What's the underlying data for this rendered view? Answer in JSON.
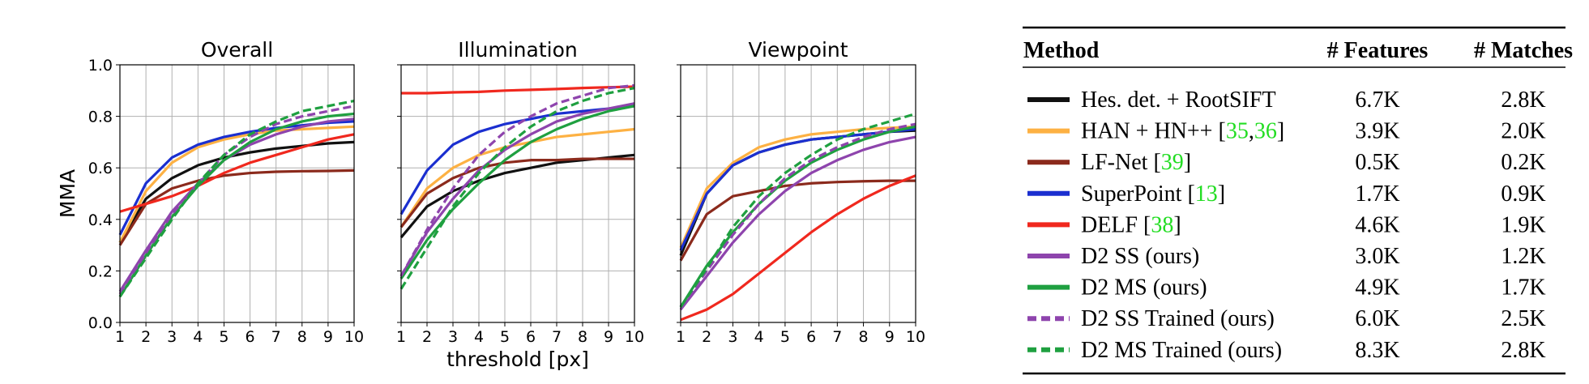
{
  "chart_data": [
    {
      "type": "line",
      "title": "Overall",
      "y_label": "MMA",
      "x": [
        1,
        2,
        3,
        4,
        5,
        6,
        7,
        8,
        9,
        10
      ],
      "xlim": [
        1,
        10
      ],
      "xticks": [
        1,
        2,
        3,
        4,
        5,
        6,
        7,
        8,
        9,
        10
      ],
      "ylim": [
        0,
        1
      ],
      "yticks": [
        {
          "value": 0,
          "label": "0.0"
        },
        {
          "value": 0.2,
          "label": "0.2"
        },
        {
          "value": 0.4,
          "label": "0.4"
        },
        {
          "value": 0.6,
          "label": "0.6"
        },
        {
          "value": 0.8,
          "label": "0.8"
        },
        {
          "value": 1,
          "label": "1.0"
        }
      ],
      "grid": true,
      "series": [
        {
          "name": "Hes. det. + RootSIFT",
          "color": "#111111",
          "dashed": false,
          "values": [
            0.31,
            0.48,
            0.56,
            0.61,
            0.64,
            0.66,
            0.675,
            0.685,
            0.695,
            0.7
          ]
        },
        {
          "name": "HAN + HN++",
          "color": "#fdb143",
          "dashed": false,
          "values": [
            0.31,
            0.51,
            0.62,
            0.68,
            0.71,
            0.73,
            0.745,
            0.75,
            0.755,
            0.76
          ]
        },
        {
          "name": "LF-Net",
          "color": "#8b2a1c",
          "dashed": false,
          "values": [
            0.3,
            0.46,
            0.52,
            0.55,
            0.57,
            0.58,
            0.585,
            0.587,
            0.588,
            0.59
          ]
        },
        {
          "name": "SuperPoint",
          "color": "#1b2fd0",
          "dashed": false,
          "values": [
            0.34,
            0.54,
            0.64,
            0.69,
            0.72,
            0.74,
            0.755,
            0.765,
            0.775,
            0.78
          ]
        },
        {
          "name": "DELF",
          "color": "#f0281e",
          "dashed": false,
          "values": [
            0.43,
            0.46,
            0.49,
            0.53,
            0.58,
            0.62,
            0.65,
            0.68,
            0.71,
            0.73
          ]
        },
        {
          "name": "D2 SS (ours)",
          "color": "#8e44ad",
          "dashed": false,
          "values": [
            0.12,
            0.28,
            0.43,
            0.54,
            0.63,
            0.69,
            0.73,
            0.76,
            0.78,
            0.79
          ]
        },
        {
          "name": "D2 MS (ours)",
          "color": "#1fa040",
          "dashed": false,
          "values": [
            0.1,
            0.26,
            0.41,
            0.53,
            0.63,
            0.7,
            0.75,
            0.78,
            0.8,
            0.81
          ]
        },
        {
          "name": "D2 SS Trained (ours)",
          "color": "#8e44ad",
          "dashed": true,
          "values": [
            0.11,
            0.27,
            0.42,
            0.54,
            0.65,
            0.72,
            0.77,
            0.8,
            0.82,
            0.84
          ]
        },
        {
          "name": "D2 MS Trained (ours)",
          "color": "#1fa040",
          "dashed": true,
          "values": [
            0.1,
            0.25,
            0.4,
            0.54,
            0.65,
            0.73,
            0.78,
            0.82,
            0.84,
            0.86
          ]
        }
      ]
    },
    {
      "type": "line",
      "title": "Illumination",
      "x_label": "threshold [px]",
      "x": [
        1,
        2,
        3,
        4,
        5,
        6,
        7,
        8,
        9,
        10
      ],
      "xlim": [
        1,
        10
      ],
      "xticks": [
        1,
        2,
        3,
        4,
        5,
        6,
        7,
        8,
        9,
        10
      ],
      "ylim": [
        0,
        1
      ],
      "yticks": [
        0,
        0.2,
        0.4,
        0.6,
        0.8,
        1
      ],
      "grid": true,
      "series": [
        {
          "color": "#111111",
          "dashed": false,
          "values": [
            0.33,
            0.45,
            0.51,
            0.55,
            0.58,
            0.6,
            0.62,
            0.63,
            0.64,
            0.65
          ]
        },
        {
          "color": "#fdb143",
          "dashed": false,
          "values": [
            0.37,
            0.52,
            0.6,
            0.65,
            0.68,
            0.7,
            0.72,
            0.73,
            0.74,
            0.75
          ]
        },
        {
          "color": "#8b2a1c",
          "dashed": false,
          "values": [
            0.37,
            0.5,
            0.56,
            0.6,
            0.62,
            0.63,
            0.63,
            0.635,
            0.635,
            0.635
          ]
        },
        {
          "color": "#1b2fd0",
          "dashed": false,
          "values": [
            0.42,
            0.59,
            0.69,
            0.74,
            0.77,
            0.79,
            0.81,
            0.82,
            0.83,
            0.84
          ]
        },
        {
          "color": "#f0281e",
          "dashed": false,
          "values": [
            0.89,
            0.89,
            0.893,
            0.895,
            0.9,
            0.903,
            0.906,
            0.91,
            0.913,
            0.915
          ]
        },
        {
          "color": "#8e44ad",
          "dashed": false,
          "values": [
            0.18,
            0.35,
            0.48,
            0.59,
            0.67,
            0.73,
            0.78,
            0.81,
            0.83,
            0.85
          ]
        },
        {
          "color": "#1fa040",
          "dashed": false,
          "values": [
            0.17,
            0.32,
            0.44,
            0.54,
            0.63,
            0.7,
            0.75,
            0.79,
            0.82,
            0.84
          ]
        },
        {
          "color": "#8e44ad",
          "dashed": true,
          "values": [
            0.18,
            0.36,
            0.52,
            0.65,
            0.74,
            0.8,
            0.85,
            0.88,
            0.91,
            0.92
          ]
        },
        {
          "color": "#1fa040",
          "dashed": true,
          "values": [
            0.13,
            0.29,
            0.45,
            0.58,
            0.68,
            0.76,
            0.82,
            0.86,
            0.89,
            0.91
          ]
        }
      ]
    },
    {
      "type": "line",
      "title": "Viewpoint",
      "x": [
        1,
        2,
        3,
        4,
        5,
        6,
        7,
        8,
        9,
        10
      ],
      "xlim": [
        1,
        10
      ],
      "xticks": [
        1,
        2,
        3,
        4,
        5,
        6,
        7,
        8,
        9,
        10
      ],
      "ylim": [
        0,
        1
      ],
      "yticks": [
        0,
        0.2,
        0.4,
        0.6,
        0.8,
        1
      ],
      "grid": true,
      "series": [
        {
          "color": "#111111",
          "dashed": false,
          "values": [
            0.26,
            0.5,
            0.61,
            0.66,
            0.69,
            0.71,
            0.72,
            0.73,
            0.74,
            0.745
          ]
        },
        {
          "color": "#fdb143",
          "dashed": false,
          "values": [
            0.29,
            0.52,
            0.62,
            0.68,
            0.71,
            0.73,
            0.74,
            0.75,
            0.755,
            0.76
          ]
        },
        {
          "color": "#8b2a1c",
          "dashed": false,
          "values": [
            0.24,
            0.42,
            0.49,
            0.51,
            0.53,
            0.54,
            0.545,
            0.548,
            0.55,
            0.55
          ]
        },
        {
          "color": "#1b2fd0",
          "dashed": false,
          "values": [
            0.28,
            0.5,
            0.61,
            0.66,
            0.69,
            0.71,
            0.72,
            0.73,
            0.74,
            0.75
          ]
        },
        {
          "color": "#f0281e",
          "dashed": false,
          "values": [
            0.01,
            0.05,
            0.11,
            0.19,
            0.27,
            0.35,
            0.42,
            0.48,
            0.53,
            0.57
          ]
        },
        {
          "color": "#8e44ad",
          "dashed": false,
          "values": [
            0.05,
            0.18,
            0.31,
            0.42,
            0.51,
            0.58,
            0.63,
            0.67,
            0.7,
            0.72
          ]
        },
        {
          "color": "#1fa040",
          "dashed": false,
          "values": [
            0.06,
            0.22,
            0.35,
            0.46,
            0.55,
            0.62,
            0.67,
            0.71,
            0.74,
            0.76
          ]
        },
        {
          "color": "#8e44ad",
          "dashed": true,
          "values": [
            0.06,
            0.2,
            0.34,
            0.46,
            0.56,
            0.63,
            0.68,
            0.72,
            0.75,
            0.77
          ]
        },
        {
          "color": "#1fa040",
          "dashed": true,
          "values": [
            0.06,
            0.21,
            0.37,
            0.49,
            0.58,
            0.65,
            0.71,
            0.75,
            0.78,
            0.81
          ]
        }
      ]
    }
  ],
  "table": {
    "headers": [
      "Method",
      "# Features",
      "# Matches"
    ],
    "rows": [
      {
        "refs": [],
        "features": "6.7K",
        "matches": "2.8K"
      },
      {
        "refs": [
          "35",
          "36"
        ],
        "features": "3.9K",
        "matches": "2.0K"
      },
      {
        "refs": [
          "39"
        ],
        "features": "0.5K",
        "matches": "0.2K"
      },
      {
        "refs": [
          "13"
        ],
        "features": "1.7K",
        "matches": "0.9K"
      },
      {
        "refs": [
          "38"
        ],
        "features": "4.6K",
        "matches": "1.9K"
      },
      {
        "refs": [],
        "features": "3.0K",
        "matches": "1.2K"
      },
      {
        "refs": [],
        "features": "4.9K",
        "matches": "1.7K"
      },
      {
        "refs": [],
        "features": "6.0K",
        "matches": "2.5K"
      },
      {
        "refs": [],
        "features": "8.3K",
        "matches": "2.8K"
      }
    ]
  }
}
